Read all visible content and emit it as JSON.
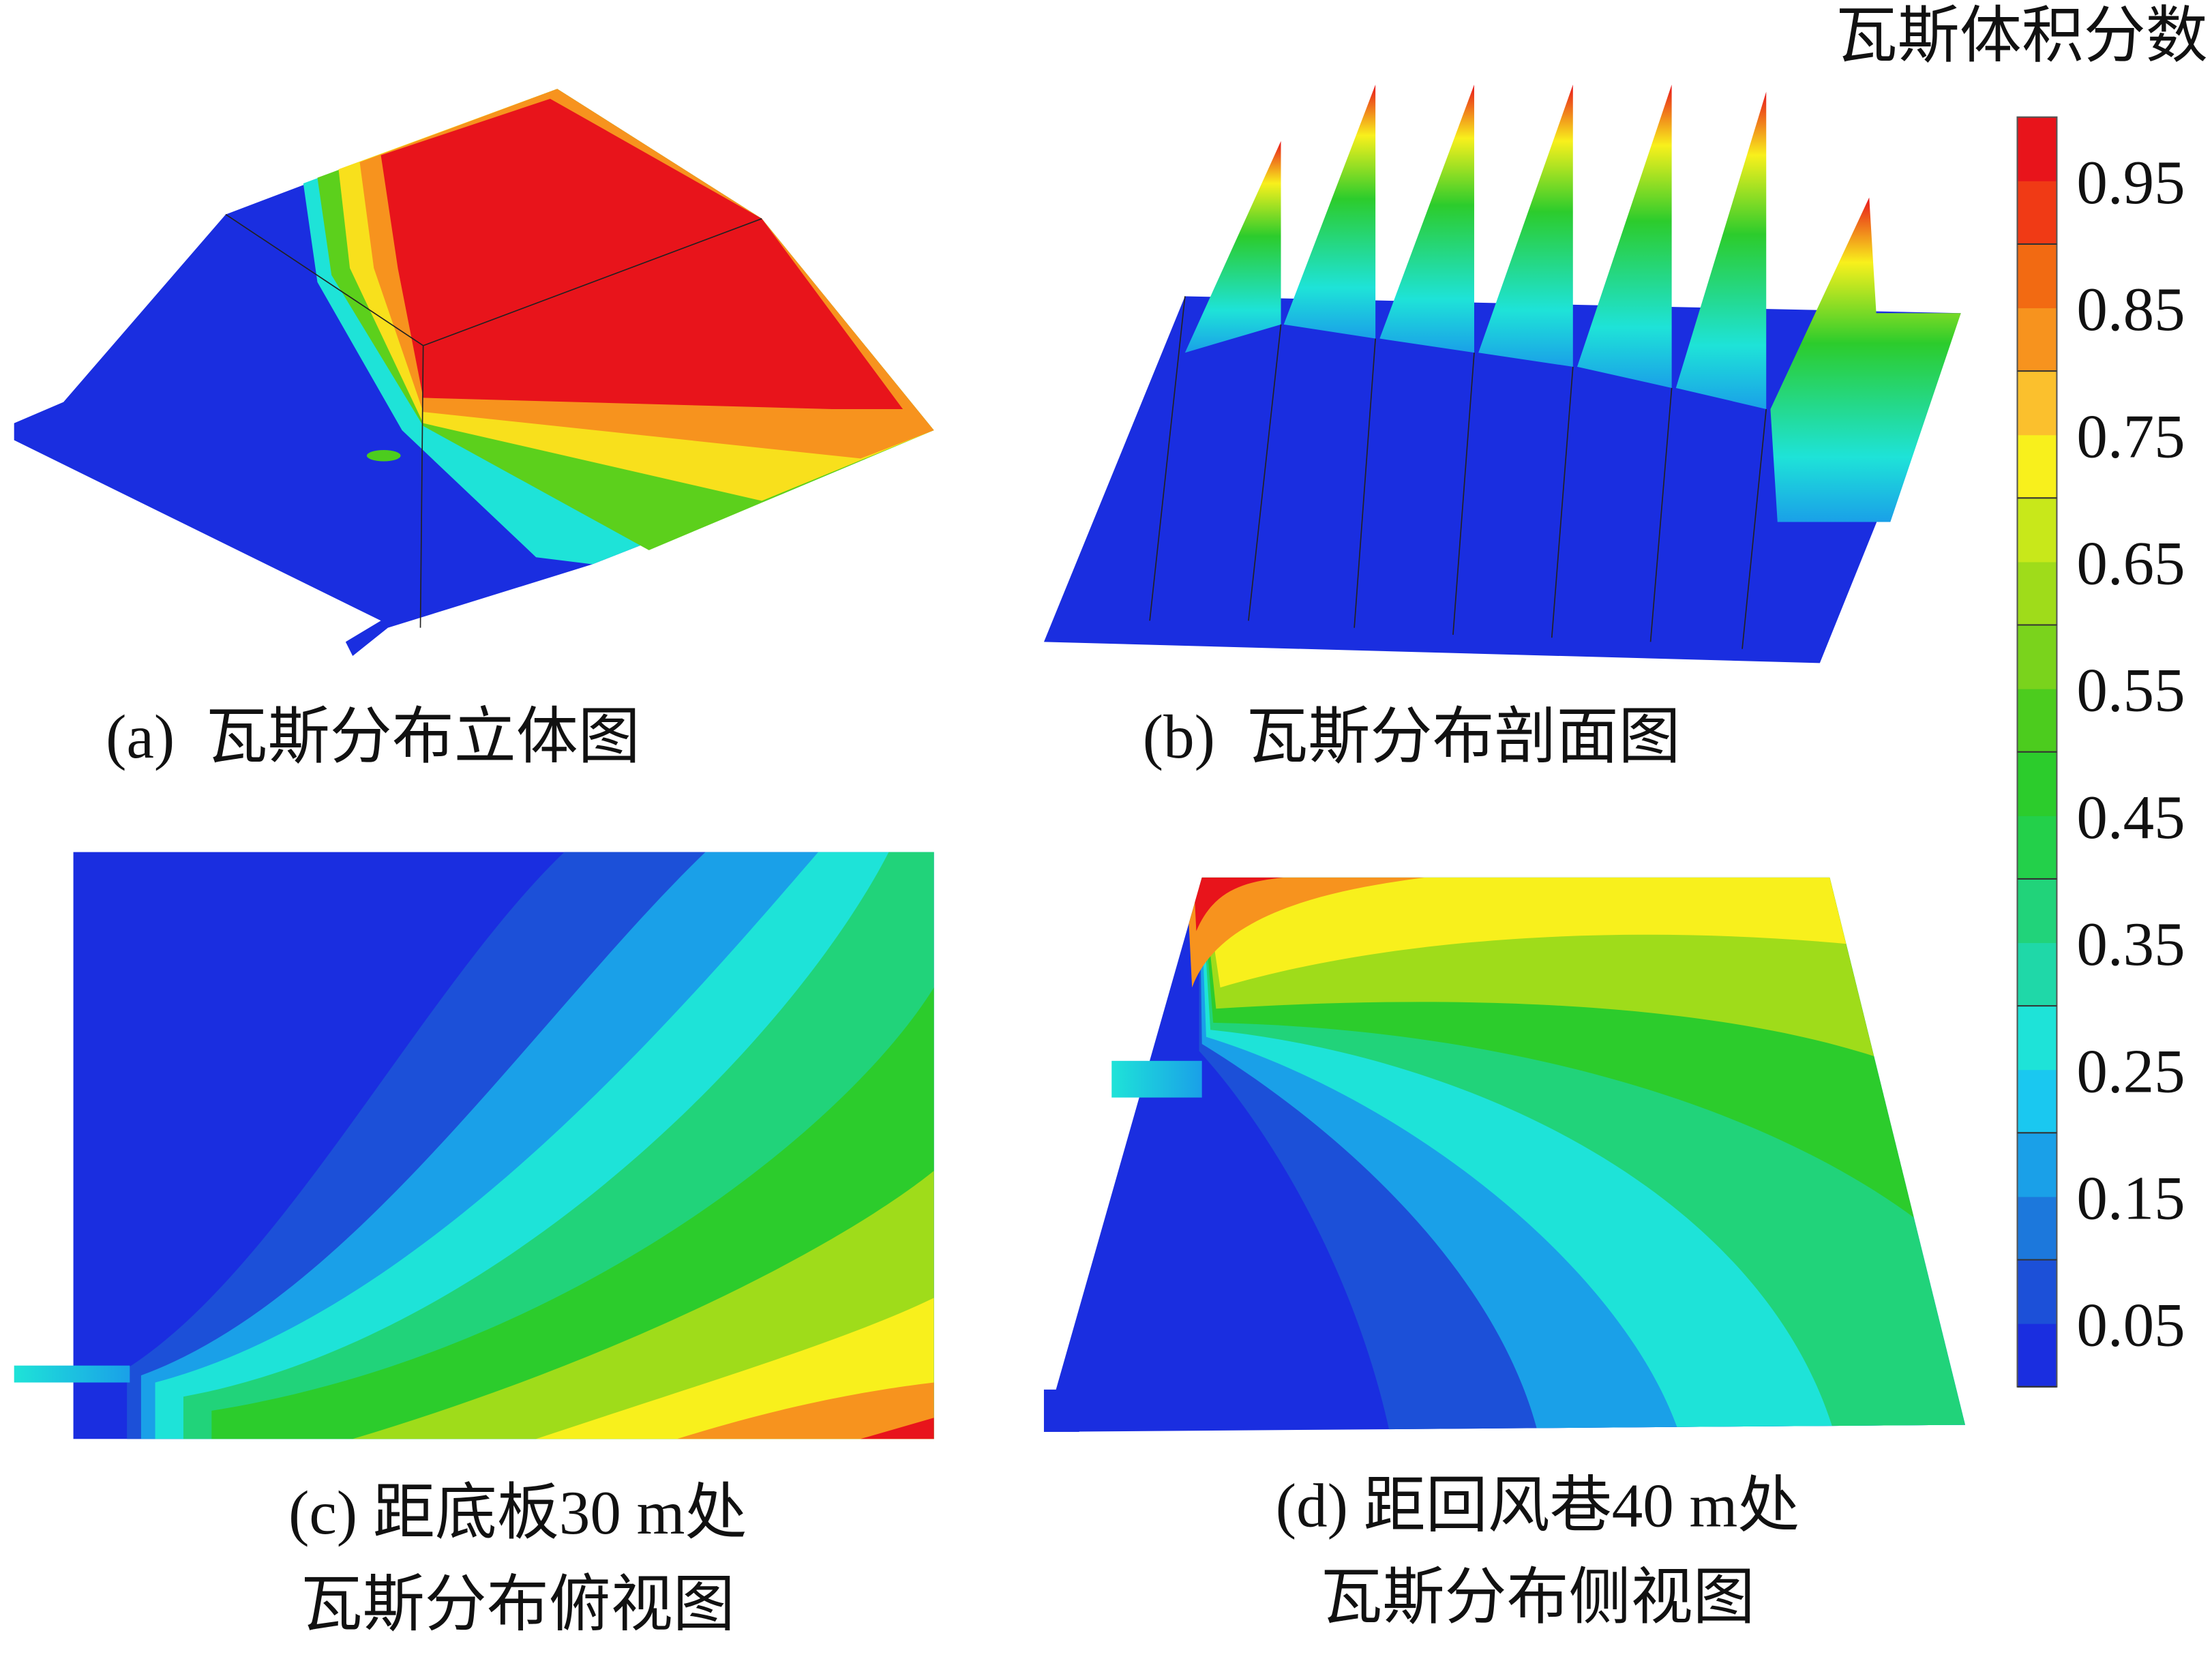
{
  "colorbar": {
    "title": "瓦斯体积分数",
    "lim": [
      0,
      1
    ],
    "ticks": [
      0.05,
      0.15,
      0.25,
      0.35,
      0.45,
      0.55,
      0.65,
      0.75,
      0.85,
      0.95
    ],
    "colors": [
      "#1a2ee0",
      "#1c50d8",
      "#1c78dc",
      "#1aa0e8",
      "#1ac8f0",
      "#1ee3d8",
      "#1fd8a8",
      "#21d37a",
      "#23d04a",
      "#2ccc2c",
      "#4ccc1e",
      "#7ad31c",
      "#9fdc1a",
      "#c8e81a",
      "#f8f01c",
      "#fbc02d",
      "#f7931e",
      "#f26a12",
      "#f03a15",
      "#e8141b"
    ]
  },
  "panels": [
    {
      "caption": [
        "(a)  瓦斯分布立体图"
      ]
    },
    {
      "caption": [
        "(b)  瓦斯分布剖面图"
      ]
    },
    {
      "caption": [
        "(c) 距底板30 m处",
        "瓦斯分布俯视图"
      ]
    },
    {
      "caption": [
        "(d) 距回风巷40 m处",
        "瓦斯分布侧视图"
      ]
    }
  ]
}
